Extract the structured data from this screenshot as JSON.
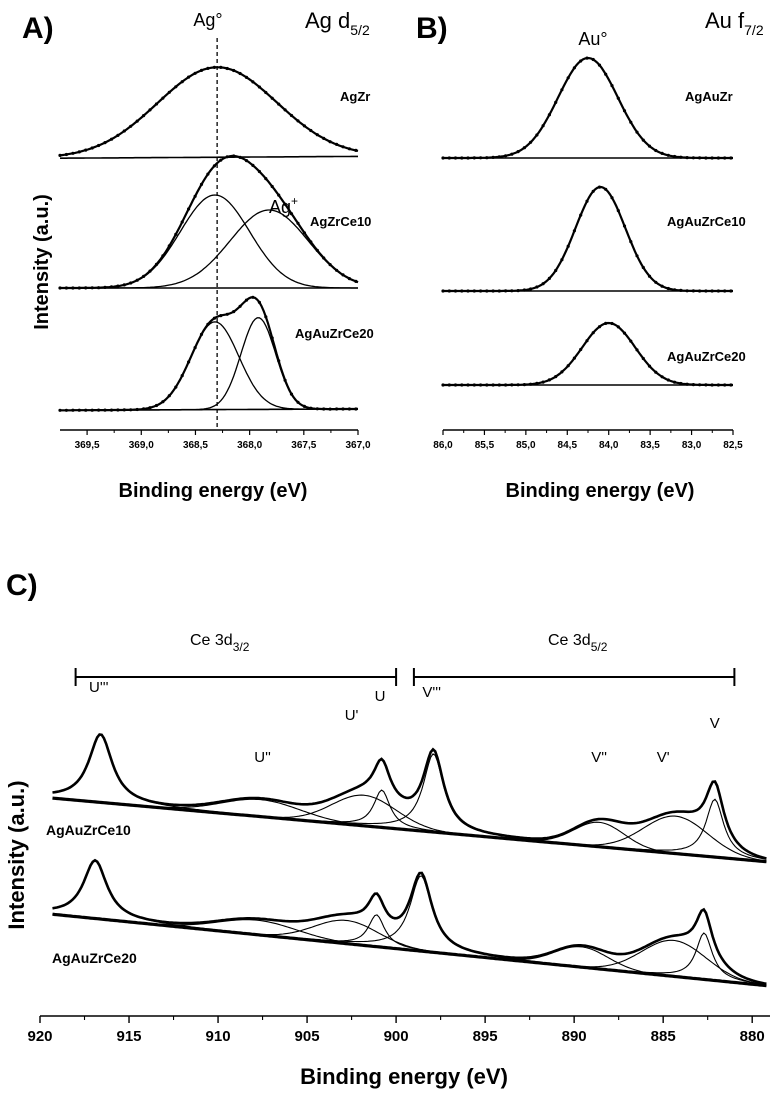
{
  "chart_data": [
    {
      "type": "line",
      "panel": "A)",
      "title": "Ag d",
      "title_sub": "5/2",
      "xlabel": "Binding energy (eV)",
      "ylabel": "Intensity (a.u.)",
      "xlim": [
        369.75,
        367.0
      ],
      "x_ticks": [
        "369,5",
        "369,0",
        "368,5",
        "368,0",
        "367,5",
        "367,0"
      ],
      "reference_line": {
        "label": "Ag°",
        "x": 368.3
      },
      "secondary_label": "Ag",
      "secondary_label_sup": "+",
      "series": [
        {
          "name": "AgZr",
          "peaks": [
            {
              "center": 368.3,
              "height": 1.0,
              "width": 0.55
            }
          ],
          "baseline": [
            0.02,
            0.04
          ]
        },
        {
          "name": "AgZrCe10",
          "peaks": [
            {
              "center": 368.32,
              "height": 0.62,
              "width": 0.32
            },
            {
              "center": 367.82,
              "height": 0.52,
              "width": 0.36
            }
          ],
          "baseline": [
            0.0,
            0.0
          ]
        },
        {
          "name": "AgAuZrCe20",
          "peaks": [
            {
              "center": 368.32,
              "height": 0.65,
              "width": 0.22
            },
            {
              "center": 367.92,
              "height": 0.68,
              "width": 0.16
            }
          ],
          "baseline": [
            0.02,
            0.03
          ]
        }
      ]
    },
    {
      "type": "line",
      "panel": "B)",
      "title": "Au f",
      "title_sub": "7/2",
      "xlabel": "Binding energy (eV)",
      "xlim": [
        86.0,
        82.5
      ],
      "x_ticks": [
        "86,0",
        "85,5",
        "85,0",
        "84,5",
        "84,0",
        "83,5",
        "83,0",
        "82,5"
      ],
      "peak_label": "Au°",
      "series": [
        {
          "name": "AgAuZr",
          "peaks": [
            {
              "center": 84.25,
              "height": 1.0,
              "width": 0.36
            }
          ]
        },
        {
          "name": "AgAuZrCe10",
          "peaks": [
            {
              "center": 84.1,
              "height": 1.0,
              "width": 0.3
            }
          ]
        },
        {
          "name": "AgAuZrCe20",
          "peaks": [
            {
              "center": 84.0,
              "height": 1.0,
              "width": 0.32
            }
          ]
        }
      ]
    },
    {
      "type": "line",
      "panel": "C)",
      "xlabel": "Binding energy (eV)",
      "ylabel": "Intensity (a.u.)",
      "xlim": [
        920,
        879
      ],
      "x_ticks": [
        "920",
        "915",
        "910",
        "905",
        "900",
        "895",
        "890",
        "885",
        "880"
      ],
      "groups": [
        {
          "label": "Ce 3d",
          "label_sub": "3/2",
          "from": 918,
          "to": 900
        },
        {
          "label": "Ce 3d",
          "label_sub": "5/2",
          "from": 899,
          "to": 881
        }
      ],
      "peak_labels": [
        {
          "label": "U'''",
          "x": 916.7
        },
        {
          "label": "U''",
          "x": 907.5
        },
        {
          "label": "U'",
          "x": 902.5
        },
        {
          "label": "U",
          "x": 900.9
        },
        {
          "label": "V'''",
          "x": 898.0
        },
        {
          "label": "V''",
          "x": 888.6
        },
        {
          "label": "V'",
          "x": 885.0
        },
        {
          "label": "V",
          "x": 882.1
        }
      ],
      "series": [
        {
          "name": "AgAuZrCe10",
          "components": [
            {
              "center": 916.6,
              "height": 1.0,
              "width": 0.8
            },
            {
              "center": 907.6,
              "height": 0.25,
              "width": 2.2
            },
            {
              "center": 901.8,
              "height": 0.45,
              "width": 1.8
            },
            {
              "center": 900.8,
              "height": 0.55,
              "width": 0.55
            },
            {
              "center": 897.9,
              "height": 1.15,
              "width": 0.7
            },
            {
              "center": 888.6,
              "height": 0.36,
              "width": 1.4
            },
            {
              "center": 884.3,
              "height": 0.55,
              "width": 1.8
            },
            {
              "center": 882.1,
              "height": 0.85,
              "width": 0.6
            }
          ]
        },
        {
          "name": "AgAuZrCe20",
          "components": [
            {
              "center": 916.9,
              "height": 1.0,
              "width": 0.8
            },
            {
              "center": 907.8,
              "height": 0.25,
              "width": 2.2
            },
            {
              "center": 902.8,
              "height": 0.4,
              "width": 1.8
            },
            {
              "center": 901.1,
              "height": 0.55,
              "width": 0.55
            },
            {
              "center": 898.6,
              "height": 1.3,
              "width": 0.75
            },
            {
              "center": 889.6,
              "height": 0.35,
              "width": 1.5
            },
            {
              "center": 884.4,
              "height": 0.62,
              "width": 1.8
            },
            {
              "center": 882.7,
              "height": 0.8,
              "width": 0.55
            }
          ]
        }
      ]
    }
  ]
}
